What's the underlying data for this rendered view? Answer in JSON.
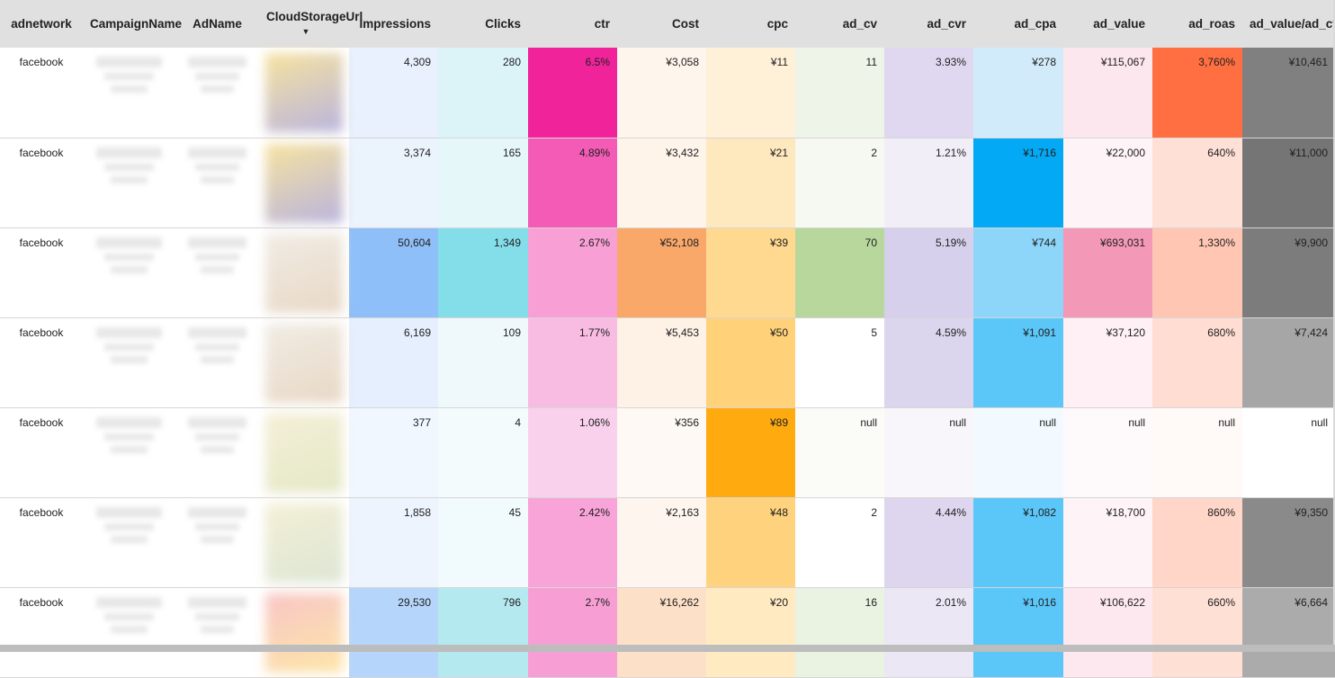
{
  "headers": [
    {
      "label": "adnetwork",
      "align": "l"
    },
    {
      "label": "CampaignName",
      "align": "l"
    },
    {
      "label": "AdName",
      "align": "l"
    },
    {
      "label": "CloudStorageUrl",
      "align": "l",
      "sorted": true
    },
    {
      "label": "Impressions",
      "align": "r"
    },
    {
      "label": "Clicks",
      "align": "r"
    },
    {
      "label": "ctr",
      "align": "r"
    },
    {
      "label": "Cost",
      "align": "r"
    },
    {
      "label": "cpc",
      "align": "r"
    },
    {
      "label": "ad_cv",
      "align": "r"
    },
    {
      "label": "ad_cvr",
      "align": "r"
    },
    {
      "label": "ad_cpa",
      "align": "r"
    },
    {
      "label": "ad_value",
      "align": "r"
    },
    {
      "label": "ad_roas",
      "align": "r"
    },
    {
      "label": "ad_value/ad_cv",
      "align": "r"
    }
  ],
  "sort_icon": "sort-descending-icon",
  "rows": [
    {
      "net": "facebook",
      "thumb": [
        "#f7e3a0",
        "#b9b4dd"
      ],
      "cells": [
        [
          "4,309",
          "#e8f1fd"
        ],
        [
          "280",
          "#dcf3f8"
        ],
        [
          "6.5%",
          "#f0239b"
        ],
        [
          "¥3,058",
          "#fef5ec"
        ],
        [
          "¥11",
          "#fff1d8"
        ],
        [
          "11",
          "#eef4e7"
        ],
        [
          "3.93%",
          "#e0d8f0"
        ],
        [
          "¥278",
          "#d2ebfb"
        ],
        [
          "¥115,067",
          "#fde7ee"
        ],
        [
          "3,760%",
          "#ff6f41"
        ],
        [
          "¥10,461",
          "#808080"
        ]
      ]
    },
    {
      "net": "facebook",
      "thumb": [
        "#f7e3a0",
        "#b9b4dd"
      ],
      "cells": [
        [
          "3,374",
          "#ebf3fd"
        ],
        [
          "165",
          "#e6f7fa"
        ],
        [
          "4.89%",
          "#f35bb7"
        ],
        [
          "¥3,432",
          "#fef4ea"
        ],
        [
          "¥21",
          "#fee8be"
        ],
        [
          "2",
          "#f6f9f2"
        ],
        [
          "1.21%",
          "#f1eef8"
        ],
        [
          "¥1,716",
          "#03a9f4"
        ],
        [
          "¥22,000",
          "#fef4f7"
        ],
        [
          "640%",
          "#ffe0d6"
        ],
        [
          "¥11,000",
          "#757575"
        ]
      ]
    },
    {
      "net": "facebook",
      "thumb": [
        "#f0ece4",
        "#e8d8c6"
      ],
      "cells": [
        [
          "50,604",
          "#8fbff8"
        ],
        [
          "1,349",
          "#84deea"
        ],
        [
          "2.67%",
          "#f8a0d5"
        ],
        [
          "¥52,108",
          "#f9a869"
        ],
        [
          "¥39",
          "#ffd990"
        ],
        [
          "70",
          "#b8d79c"
        ],
        [
          "5.19%",
          "#d7d0ec"
        ],
        [
          "¥744",
          "#8dd6f9"
        ],
        [
          "¥693,031",
          "#f498b7"
        ],
        [
          "1,330%",
          "#ffc6b4"
        ],
        [
          "¥9,900",
          "#7c7c7c"
        ]
      ]
    },
    {
      "net": "facebook",
      "thumb": [
        "#f0ece4",
        "#e8d8c6"
      ],
      "cells": [
        [
          "6,169",
          "#e5effd"
        ],
        [
          "109",
          "#eff9fb"
        ],
        [
          "1.77%",
          "#f8bce2"
        ],
        [
          "¥5,453",
          "#fef1e5"
        ],
        [
          "¥50",
          "#ffd179"
        ],
        [
          "5",
          "#ffffff"
        ],
        [
          "4.59%",
          "#dcd5ee"
        ],
        [
          "¥1,091",
          "#5bc6f8"
        ],
        [
          "¥37,120",
          "#fef0f4"
        ],
        [
          "680%",
          "#ffddd2"
        ],
        [
          "¥7,424",
          "#a6a6a6"
        ]
      ]
    },
    {
      "net": "facebook",
      "thumb": [
        "#f4efd6",
        "#e5e8c8"
      ],
      "cells": [
        [
          "377",
          "#f1f7fe"
        ],
        [
          "4",
          "#f4fbfc"
        ],
        [
          "1.06%",
          "#fad1ec"
        ],
        [
          "¥356",
          "#fef9f4"
        ],
        [
          "¥89",
          "#ffab10"
        ],
        [
          "null",
          "#fbfcf8"
        ],
        [
          "null",
          "#f8f6fb"
        ],
        [
          "null",
          "#f3faff"
        ],
        [
          "null",
          "#fef9fa"
        ],
        [
          "null",
          "#fffaf8"
        ],
        [
          "null",
          "#ffffff"
        ]
      ]
    },
    {
      "net": "facebook",
      "thumb": [
        "#f4efd6",
        "#dce6d4"
      ],
      "cells": [
        [
          "1,858",
          "#eef4fe"
        ],
        [
          "45",
          "#f1fafc"
        ],
        [
          "2.42%",
          "#f8a4d8"
        ],
        [
          "¥2,163",
          "#fef6ee"
        ],
        [
          "¥48",
          "#ffd27e"
        ],
        [
          "2",
          "#ffffff"
        ],
        [
          "4.44%",
          "#ddd6ee"
        ],
        [
          "¥1,082",
          "#5bc6f8"
        ],
        [
          "¥18,700",
          "#fef3f6"
        ],
        [
          "860%",
          "#ffd6c8"
        ],
        [
          "¥9,350",
          "#8a8a8a"
        ]
      ]
    },
    {
      "net": "facebook",
      "thumb": [
        "#f8c6c6",
        "#fde6a8"
      ],
      "cells": [
        [
          "29,530",
          "#b6d5fb"
        ],
        [
          "796",
          "#b4e9f0"
        ],
        [
          "2.7%",
          "#f79fd4"
        ],
        [
          "¥16,262",
          "#fde0c8"
        ],
        [
          "¥20",
          "#ffeac2"
        ],
        [
          "16",
          "#eaf2e2"
        ],
        [
          "2.01%",
          "#ebe7f5"
        ],
        [
          "¥1,016",
          "#5bc6f8"
        ],
        [
          "¥106,622",
          "#fde8ef"
        ],
        [
          "660%",
          "#ffe0d5"
        ],
        [
          "¥6,664",
          "#ababab"
        ]
      ]
    }
  ]
}
